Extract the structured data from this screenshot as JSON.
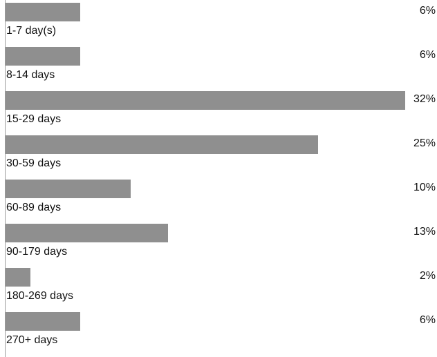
{
  "chart_data": {
    "type": "bar",
    "orientation": "horizontal",
    "categories": [
      "1-7 day(s)",
      "8-14 days",
      "15-29 days",
      "30-59 days",
      "60-89 days",
      "90-179 days",
      "180-269 days",
      "270+ days"
    ],
    "values": [
      6,
      6,
      32,
      25,
      10,
      13,
      2,
      6
    ],
    "value_labels": [
      "6%",
      "6%",
      "32%",
      "25%",
      "10%",
      "13%",
      "2%",
      "6%"
    ],
    "unit": "%",
    "xlim": [
      0,
      32
    ],
    "bar_color": "#8f8f8f",
    "grid": false,
    "legend": "none"
  }
}
